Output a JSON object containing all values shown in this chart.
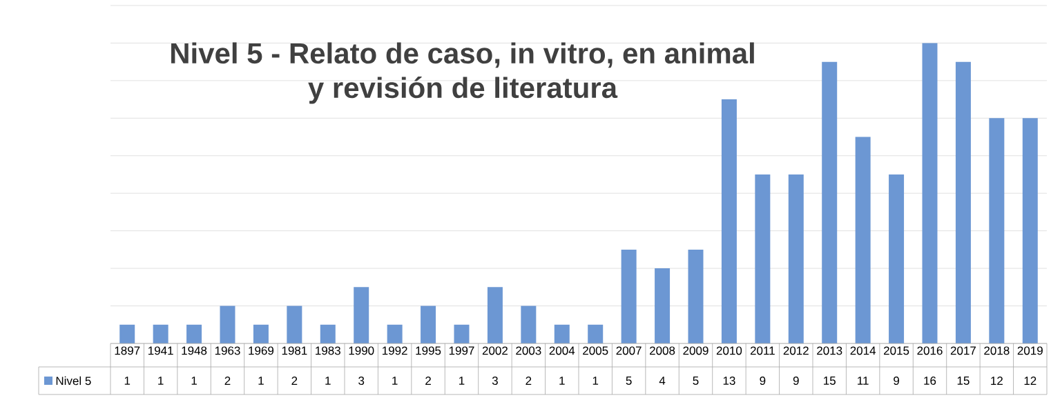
{
  "chart_data": {
    "type": "bar",
    "title": "Nivel 5 - Relato de caso, in vitro, en animal\ny revisión de literatura",
    "categories": [
      "1897",
      "1941",
      "1948",
      "1963",
      "1969",
      "1981",
      "1983",
      "1990",
      "1992",
      "1995",
      "1997",
      "2002",
      "2003",
      "2004",
      "2005",
      "2007",
      "2008",
      "2009",
      "2010",
      "2011",
      "2012",
      "2013",
      "2014",
      "2015",
      "2016",
      "2017",
      "2018",
      "2019"
    ],
    "series": [
      {
        "name": "Nivel 5",
        "color": "#6c97d3",
        "values": [
          1,
          1,
          1,
          2,
          1,
          2,
          1,
          3,
          1,
          2,
          1,
          3,
          2,
          1,
          1,
          5,
          4,
          5,
          13,
          9,
          9,
          15,
          11,
          9,
          16,
          15,
          12,
          12
        ]
      }
    ],
    "ylim": [
      0,
      18
    ],
    "yticks": [
      0,
      2,
      4,
      6,
      8,
      10,
      12,
      14,
      16,
      18
    ],
    "grid": "y",
    "tick_labels": "x",
    "data_labels": true
  }
}
